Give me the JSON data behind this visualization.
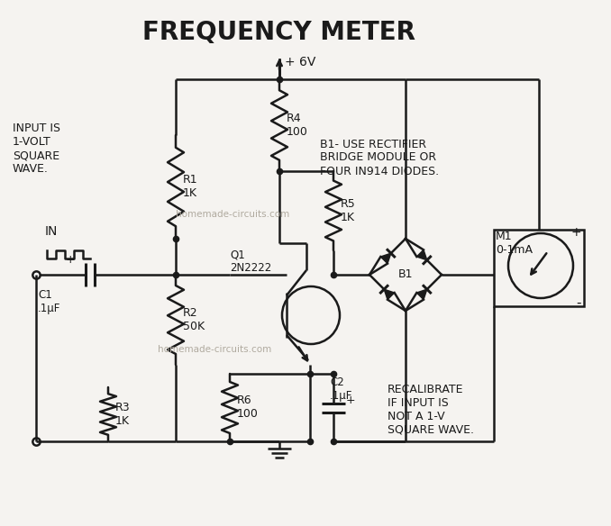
{
  "title": "FREQUENCY METER",
  "background_color": "#f5f3f0",
  "line_color": "#1a1a1a",
  "text_color": "#1a1a1a",
  "watermark1": "homemade-circuits.com",
  "watermark2": "homemade-circuits.com",
  "annotations": {
    "input_label": "IN",
    "input_desc": "INPUT IS\n1-VOLT\nSQUARE\nWAVE.",
    "r1": "R1\n1K",
    "r2": "R2\n50K",
    "r3": "R3\n1K",
    "r4": "R4\n100",
    "r5": "R5\n1K",
    "r6": "R6\n100",
    "c1": "C1\n.1μF",
    "c2": "C2\n.1μF",
    "q1": "Q1\n2N2222",
    "b1": "B1",
    "m1": "M1\n0-1mA",
    "vcc": "+ 6V",
    "b1_desc": "B1- USE RECTIFIER\nBRIDGE MODULE OR\nFOUR IN914 DIODES.",
    "recal": "RECALIBRATE\nIF INPUT IS\nNOT A 1-V\nSQUARE WAVE."
  }
}
